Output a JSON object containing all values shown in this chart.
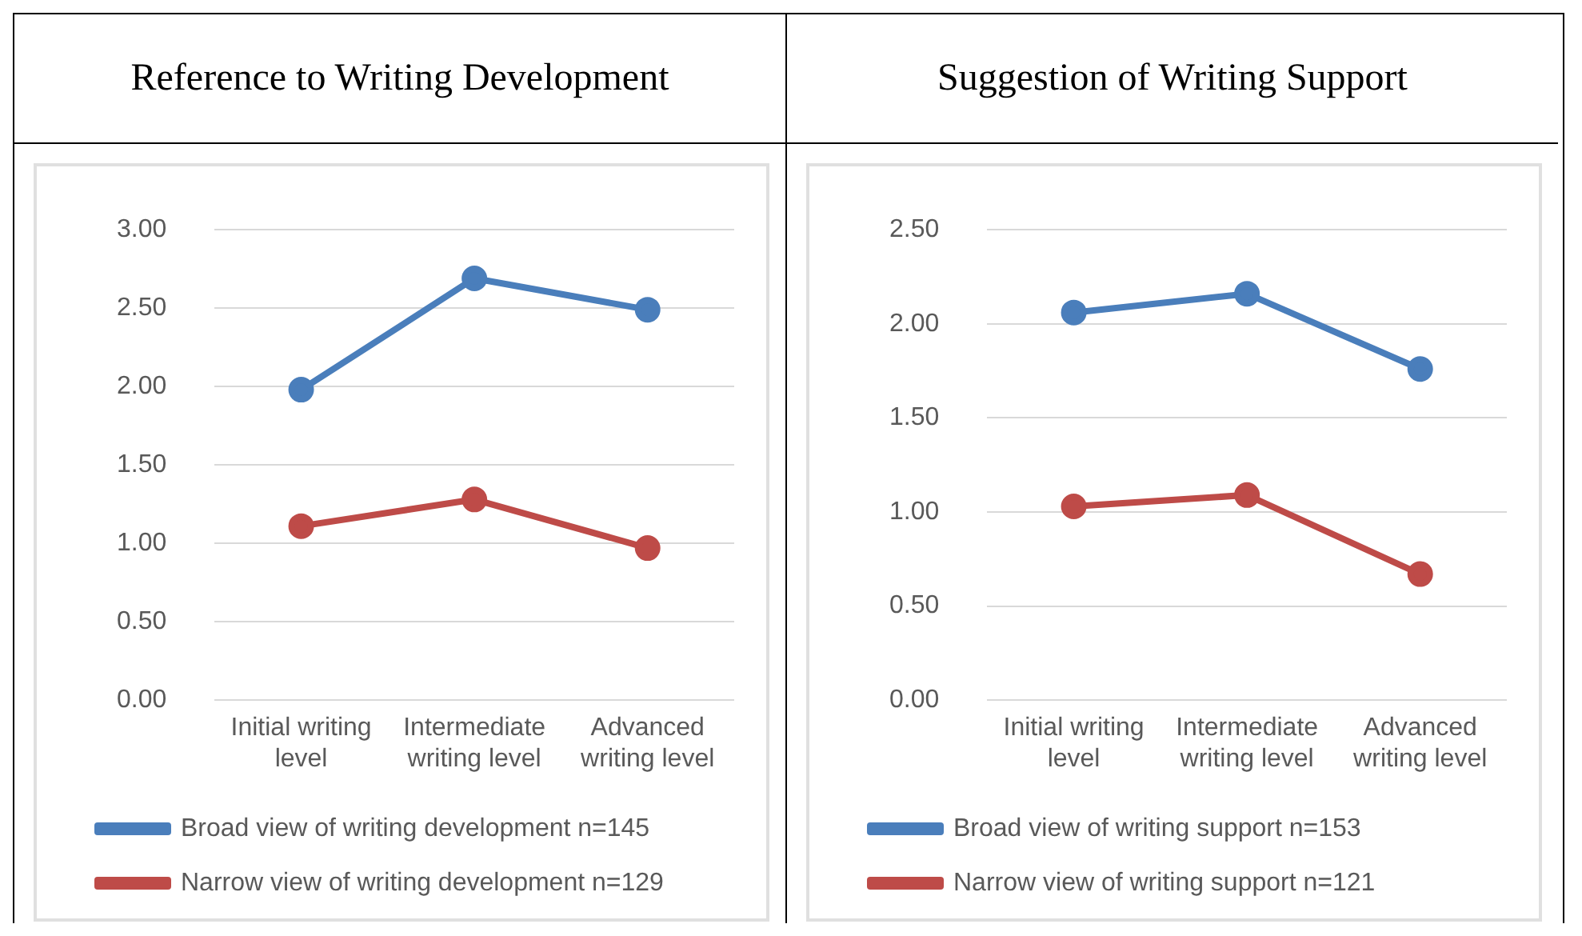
{
  "chart_data": [
    {
      "type": "line",
      "title": "Reference to Writing Development",
      "categories": [
        "Initial writing level",
        "Intermediate writing level",
        "Advanced writing level"
      ],
      "series": [
        {
          "name": "Broad view of writing development n=145",
          "color": "#4a7ebb",
          "values": [
            1.98,
            2.69,
            2.49
          ]
        },
        {
          "name": "Narrow view of writing development n=129",
          "color": "#be4b48",
          "values": [
            1.11,
            1.28,
            0.97
          ]
        }
      ],
      "ylim": [
        0,
        3
      ],
      "yticks": [
        {
          "value": 0,
          "label": "0.00"
        },
        {
          "value": 0.5,
          "label": "0.50"
        },
        {
          "value": 1,
          "label": "1.00"
        },
        {
          "value": 1.5,
          "label": "1.50"
        },
        {
          "value": 2,
          "label": "2.00"
        },
        {
          "value": 2.5,
          "label": "2.50"
        },
        {
          "value": 3,
          "label": "3.00"
        }
      ],
      "grid": "y",
      "legend": "bottom",
      "marker": "circle",
      "line_style": "solid"
    },
    {
      "type": "line",
      "title": "Suggestion of Writing Support",
      "categories": [
        "Initial writing level",
        "Intermediate writing level",
        "Advanced writing level"
      ],
      "series": [
        {
          "name": "Broad view of writing support n=153",
          "color": "#4a7ebb",
          "values": [
            2.06,
            2.16,
            1.76
          ]
        },
        {
          "name": "Narrow view of writing support n=121",
          "color": "#be4b48",
          "values": [
            1.03,
            1.09,
            0.67
          ]
        }
      ],
      "ylim": [
        0,
        2.5
      ],
      "yticks": [
        {
          "value": 0,
          "label": "0.00"
        },
        {
          "value": 0.5,
          "label": "0.50"
        },
        {
          "value": 1,
          "label": "1.00"
        },
        {
          "value": 1.5,
          "label": "1.50"
        },
        {
          "value": 2,
          "label": "2.00"
        },
        {
          "value": 2.5,
          "label": "2.50"
        }
      ],
      "grid": "y",
      "legend": "bottom",
      "marker": "circle",
      "line_style": "solid"
    }
  ]
}
